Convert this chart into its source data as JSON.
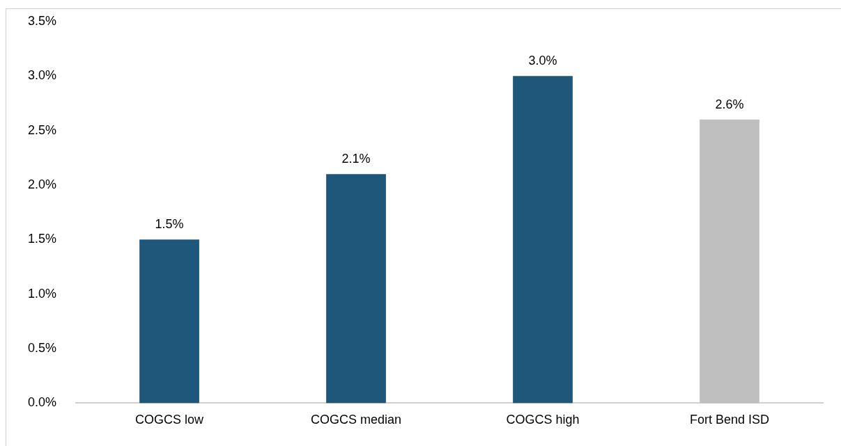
{
  "chart_data": {
    "type": "bar",
    "categories": [
      "COGCS low",
      "COGCS median",
      "COGCS high",
      "Fort Bend ISD"
    ],
    "values": [
      1.5,
      2.1,
      3.0,
      2.6
    ],
    "colors": [
      "#1f577a",
      "#1f577a",
      "#1f577a",
      "#bfbfbf"
    ],
    "value_labels": [
      "1.5%",
      "2.1%",
      "3.0%",
      "2.6%"
    ],
    "ylim": [
      0,
      3.5
    ],
    "yticks": [
      {
        "value": 0,
        "label": "0.0%"
      },
      {
        "value": 0.5,
        "label": "0.5%"
      },
      {
        "value": 1,
        "label": "1.0%"
      },
      {
        "value": 1.5,
        "label": "1.5%"
      },
      {
        "value": 2,
        "label": "2.0%"
      },
      {
        "value": 2.5,
        "label": "2.5%"
      },
      {
        "value": 3,
        "label": "3.0%"
      },
      {
        "value": 3.5,
        "label": "3.5%"
      }
    ],
    "grid": false,
    "legend": false
  }
}
